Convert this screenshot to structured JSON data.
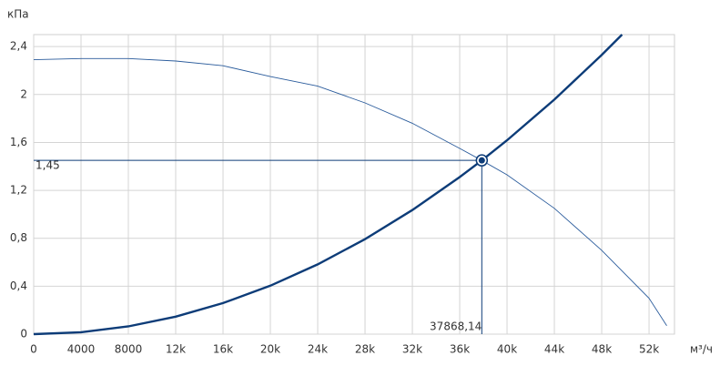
{
  "chart_data": {
    "type": "line",
    "y_label": "кПа",
    "x_label": "м³/ч",
    "xlim": [
      0,
      54150
    ],
    "ylim": [
      0,
      2.5
    ],
    "xticks": [
      0,
      4000,
      8000,
      {
        "value": 12000,
        "label": "12k"
      },
      {
        "value": 16000,
        "label": "16k"
      },
      {
        "value": 20000,
        "label": "20k"
      },
      {
        "value": 24000,
        "label": "24k"
      },
      {
        "value": 28000,
        "label": "28k"
      },
      {
        "value": 32000,
        "label": "32k"
      },
      {
        "value": 36000,
        "label": "36k"
      },
      {
        "value": 40000,
        "label": "40k"
      },
      {
        "value": 44000,
        "label": "44k"
      },
      {
        "value": 48000,
        "label": "48k"
      },
      {
        "value": 52000,
        "label": "52k"
      }
    ],
    "yticks": [
      0,
      {
        "value": 0.4,
        "label": "0,4"
      },
      {
        "value": 0.8,
        "label": "0,8"
      },
      {
        "value": 1.2,
        "label": "1,2"
      },
      {
        "value": 1.6,
        "label": "1,6"
      },
      2,
      {
        "value": 2.4,
        "label": "2,4"
      }
    ],
    "grid": true,
    "series": [
      {
        "color": "#2b5c9c",
        "x": [
          0,
          4000,
          8000,
          12000,
          16000,
          20000,
          24000,
          28000,
          32000,
          36000,
          37868.14,
          40000,
          44000,
          48000,
          52000,
          53500
        ],
        "values": [
          2.29,
          2.3,
          2.3,
          2.28,
          2.24,
          2.15,
          2.07,
          1.93,
          1.76,
          1.55,
          1.45,
          1.33,
          1.05,
          0.7,
          0.3,
          0.07
        ]
      },
      {
        "color": "#0d3c78",
        "x": [
          0,
          4000,
          8000,
          12000,
          16000,
          20000,
          24000,
          28000,
          32000,
          36000,
          37868.14,
          40000,
          44000,
          48000,
          49720
        ],
        "values": [
          0,
          0.0162,
          0.0647,
          0.1456,
          0.2589,
          0.4045,
          0.5824,
          0.7927,
          1.0354,
          1.3105,
          1.45,
          1.6179,
          1.9576,
          2.3297,
          2.4997
        ]
      }
    ],
    "operating_point": {
      "x": 37868.14,
      "y": 1.45,
      "x_label": "37868,14",
      "y_label": "1,45"
    }
  }
}
